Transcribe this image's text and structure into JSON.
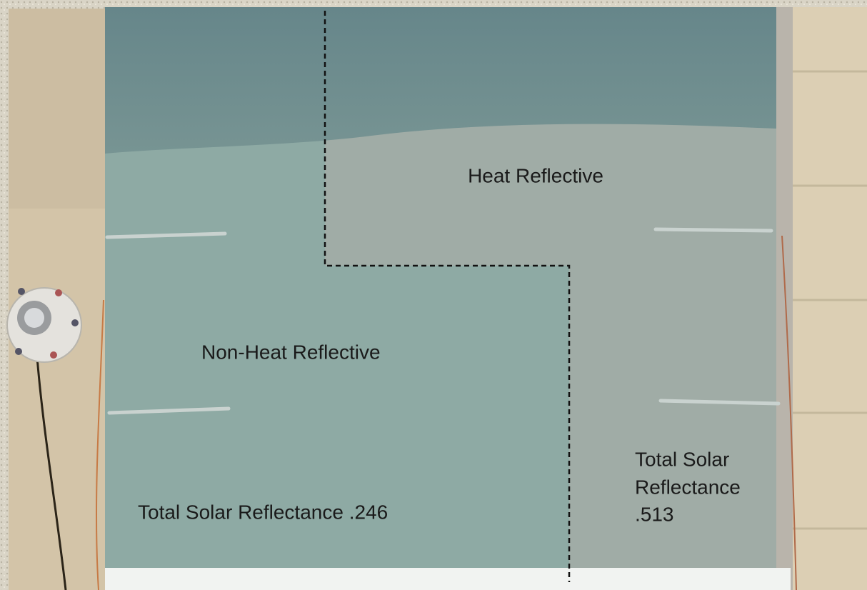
{
  "labels": {
    "heat_reflective": "Heat Reflective",
    "non_heat_reflective": "Non-Heat Reflective",
    "non_heat_reflectance": "Total Solar Reflectance .246",
    "heat_reflectance": [
      "Total Solar",
      "Reflectance",
      ".513"
    ]
  }
}
